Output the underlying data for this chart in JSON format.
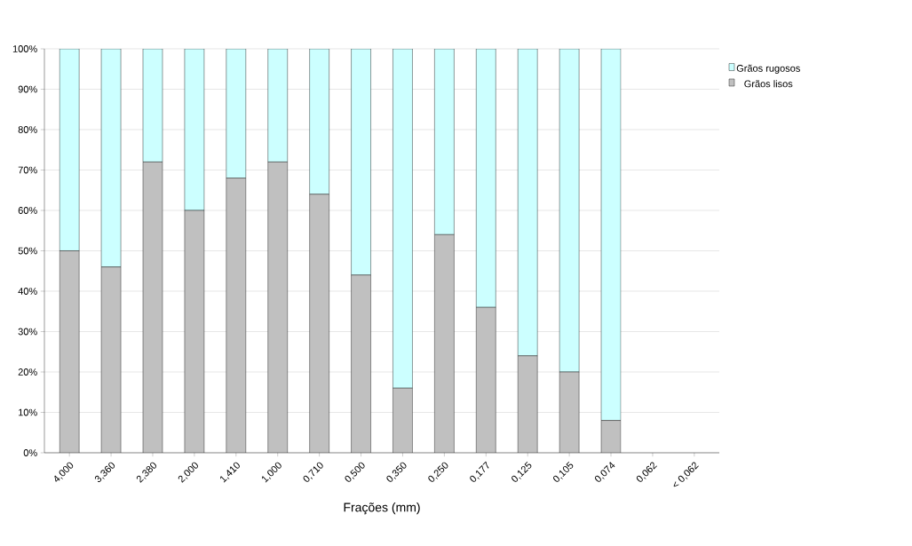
{
  "chart_data": {
    "type": "bar",
    "stacked": true,
    "xlabel": "Frações (mm)",
    "categories": [
      "4,000",
      "3,360",
      "2,380",
      "2,000",
      "1,410",
      "1,000",
      "0,710",
      "0,500",
      "0,350",
      "0,250",
      "0,177",
      "0,125",
      "0,105",
      "0,074",
      "0,062",
      "< 0,062"
    ],
    "series": [
      {
        "name": "Grãos lisos",
        "color": "#c0c0c0",
        "values": [
          50,
          46,
          72,
          60,
          68,
          72,
          64,
          44,
          16,
          54,
          36,
          24,
          20,
          8,
          0,
          0
        ]
      },
      {
        "name": "Grãos rugosos",
        "color": "#ccffff",
        "values": [
          50,
          54,
          28,
          40,
          32,
          28,
          36,
          56,
          84,
          46,
          64,
          76,
          80,
          92,
          0,
          0
        ]
      }
    ],
    "ylim": [
      0,
      100
    ],
    "yticks": [
      {
        "value": 0,
        "label": "0%"
      },
      {
        "value": 10,
        "label": "10%"
      },
      {
        "value": 20,
        "label": "20%"
      },
      {
        "value": 30,
        "label": "30%"
      },
      {
        "value": 40,
        "label": "40%"
      },
      {
        "value": 50,
        "label": "50%"
      },
      {
        "value": 60,
        "label": "60%"
      },
      {
        "value": 70,
        "label": "70%"
      },
      {
        "value": 80,
        "label": "80%"
      },
      {
        "value": 90,
        "label": "90%"
      },
      {
        "value": 100,
        "label": "100%"
      }
    ],
    "grid": "y",
    "legend": "top right"
  }
}
